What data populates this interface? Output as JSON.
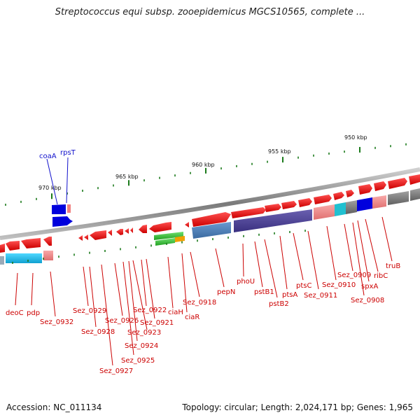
{
  "title": "Streptococcus equi subsp. zooepidemicus MGCS10565, complete ...",
  "footer": {
    "accession": "Accession: NC_011134",
    "topology": "Topology: circular; Length: 2,024,171 bp; Genes: 1,965"
  },
  "scale_labels": [
    "970 kbp",
    "965 kbp",
    "960 kbp",
    "955 kbp",
    "950 kbp"
  ],
  "top_labels": [
    "coaA",
    "rpsT"
  ],
  "gene_labels": [
    "deoC",
    "pdp",
    "Sez_0932",
    "Sez_0929",
    "Sez_0928",
    "Sez_0927",
    "Sez_0926",
    "Sez_0925",
    "Sez_0924",
    "Sez_0923",
    "Sez_0922",
    "Sez_0921",
    "ciaH",
    "ciaR",
    "Sez_0918",
    "pepN",
    "phoU",
    "pstB1",
    "pstB2",
    "ptsA",
    "ptsC",
    "Sez_0911",
    "Sez_0910",
    "Sez_0909",
    "Sez_0908",
    "spxA",
    "ribC",
    "truB"
  ],
  "colors": {
    "forward_gene": "#e00000",
    "reverse_gene": "#e00000",
    "highlight_gene": "#0000dd",
    "label_red": "#cc0000",
    "label_blue": "#1010cc",
    "tick_green": "#1a7a1a",
    "backbone": "#8a8a8a"
  }
}
